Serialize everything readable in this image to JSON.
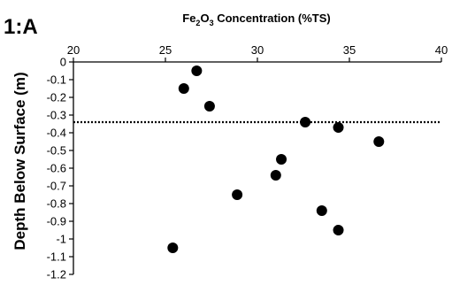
{
  "panel_label": "1:A",
  "chart_data": {
    "type": "scatter",
    "xlabel_parts": [
      "Fe",
      "2",
      "O",
      "3",
      " Concentration (%TS)"
    ],
    "ylabel": "Depth Below Surface (m)",
    "xlim": [
      20,
      40
    ],
    "ylim": [
      0,
      -1.2
    ],
    "x_ticks": [
      20,
      25,
      30,
      35,
      40
    ],
    "y_ticks": [
      0,
      -0.1,
      -0.2,
      -0.3,
      -0.4,
      -0.5,
      -0.6,
      -0.7,
      -0.8,
      -0.9,
      -1,
      -1.1,
      -1.2
    ],
    "x_tick_labels": [
      "20",
      "25",
      "30",
      "35",
      "40"
    ],
    "y_tick_labels": [
      "0",
      "-0.1",
      "-0.2",
      "-0.3",
      "-0.4",
      "-0.5",
      "-0.6",
      "-0.7",
      "-0.8",
      "-0.9",
      "-1",
      "-1.1",
      "-1.2"
    ],
    "x_axis_position": "top",
    "grid": false,
    "reference_line": {
      "y": -0.34,
      "style": "dotted"
    },
    "points": [
      {
        "x": 26.7,
        "y": -0.05
      },
      {
        "x": 26.0,
        "y": -0.15
      },
      {
        "x": 27.4,
        "y": -0.25
      },
      {
        "x": 32.6,
        "y": -0.34
      },
      {
        "x": 34.4,
        "y": -0.37
      },
      {
        "x": 36.6,
        "y": -0.45
      },
      {
        "x": 31.3,
        "y": -0.55
      },
      {
        "x": 31.0,
        "y": -0.64
      },
      {
        "x": 28.9,
        "y": -0.75
      },
      {
        "x": 33.5,
        "y": -0.84
      },
      {
        "x": 34.4,
        "y": -0.95
      },
      {
        "x": 25.4,
        "y": -1.05
      }
    ]
  }
}
